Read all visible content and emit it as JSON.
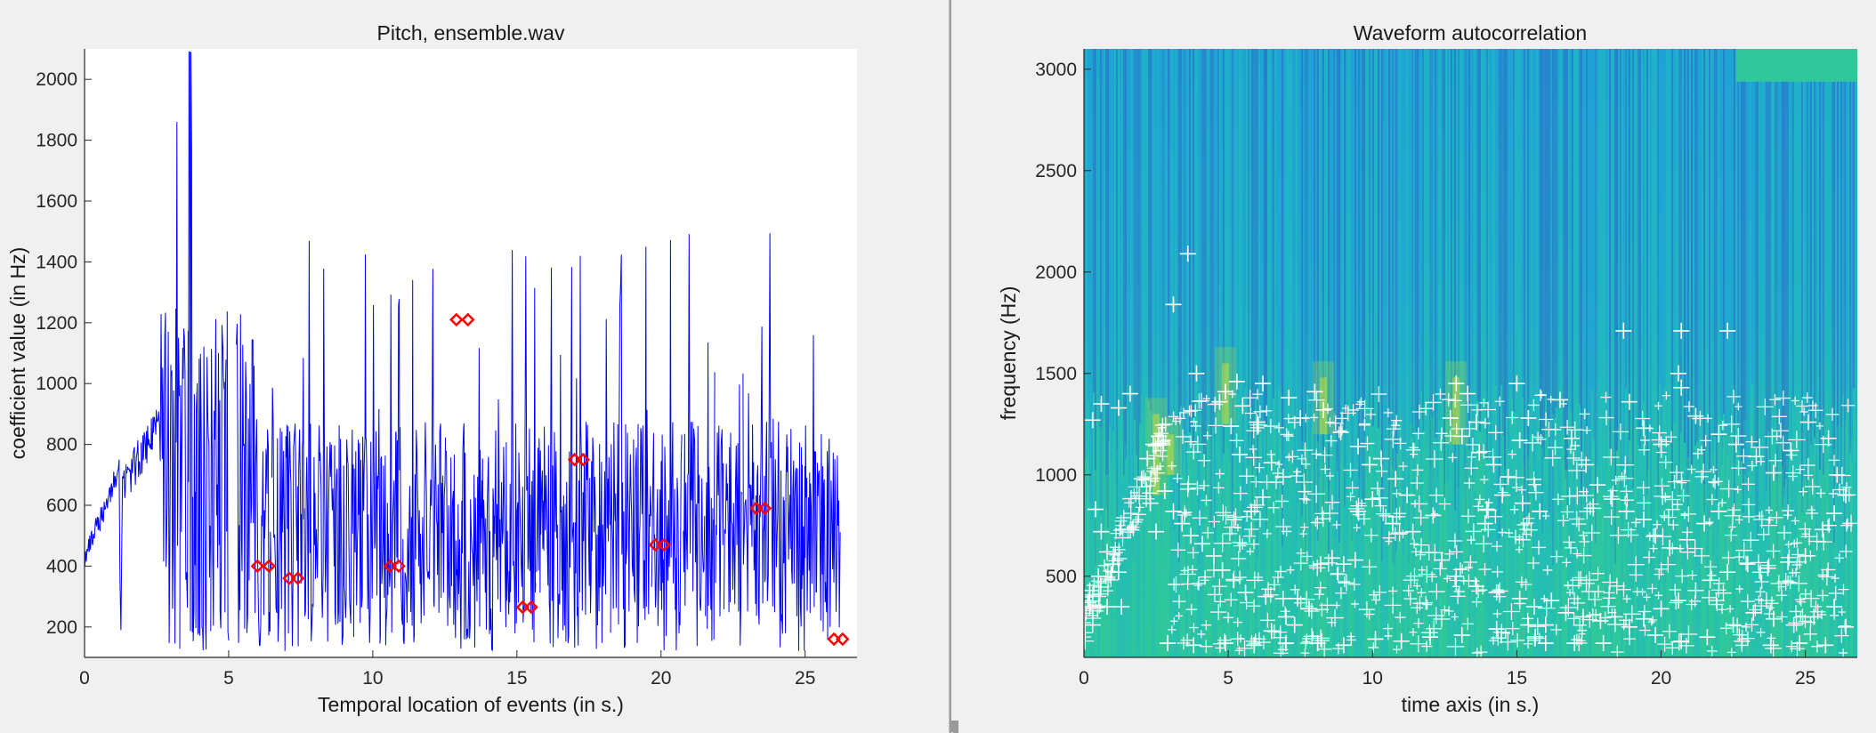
{
  "chart_data": [
    {
      "type": "line",
      "title": "Pitch, ensemble.wav",
      "xlabel": "Temporal location of events (in s.)",
      "ylabel": "coefficient value (in Hz)",
      "xlim": [
        0,
        26.8
      ],
      "ylim": [
        100,
        2100
      ],
      "xticks": [
        0,
        5,
        10,
        15,
        20,
        25
      ],
      "yticks": [
        200,
        400,
        600,
        800,
        1000,
        1200,
        1400,
        1600,
        1800,
        2000
      ],
      "line_color": "#0000ff",
      "marker_color": "#ff0000",
      "series": [
        {
          "marker": "diamond",
          "points": [
            [
              6.0,
              400
            ],
            [
              6.4,
              400
            ],
            [
              7.1,
              360
            ],
            [
              7.4,
              360
            ],
            [
              10.6,
              400
            ],
            [
              10.9,
              400
            ],
            [
              12.9,
              1210
            ],
            [
              13.3,
              1210
            ],
            [
              15.2,
              265
            ],
            [
              15.5,
              265
            ],
            [
              17.0,
              750
            ],
            [
              17.3,
              750
            ],
            [
              19.8,
              470
            ],
            [
              20.1,
              470
            ],
            [
              23.3,
              590
            ],
            [
              23.6,
              590
            ],
            [
              26.0,
              160
            ],
            [
              26.3,
              160
            ]
          ]
        }
      ]
    },
    {
      "type": "heatmap",
      "title": "Waveform autocorrelation",
      "xlabel": "time axis (in s.)",
      "ylabel": "frequency (Hz)",
      "xlim": [
        0,
        26.8
      ],
      "ylim": [
        100,
        3100
      ],
      "xticks": [
        0,
        5,
        10,
        15,
        20,
        25
      ],
      "yticks": [
        500,
        1000,
        1500,
        2000,
        2500,
        3000
      ],
      "colormap": [
        "#2a6ec8",
        "#1f9fd8",
        "#20b8c0",
        "#30c89a",
        "#8ad05a",
        "#e8e02a"
      ],
      "marker_color": "#ffffff",
      "series": [
        {
          "marker": "plus",
          "points": [
            [
              0.3,
              1270
            ],
            [
              0.6,
              1350
            ],
            [
              1.2,
              1330
            ],
            [
              1.6,
              1400
            ],
            [
              0.4,
              830
            ],
            [
              0.6,
              720
            ],
            [
              0.8,
              620
            ],
            [
              1.0,
              560
            ],
            [
              1.2,
              520
            ],
            [
              0.2,
              430
            ],
            [
              0.5,
              500
            ],
            [
              0.3,
              260
            ],
            [
              0.8,
              350
            ],
            [
              1.3,
              350
            ],
            [
              2.2,
              1080
            ],
            [
              2.4,
              1150
            ],
            [
              2.6,
              1190
            ],
            [
              2.0,
              980
            ],
            [
              2.3,
              860
            ],
            [
              2.8,
              920
            ],
            [
              2.5,
              720
            ],
            [
              3.1,
              820
            ],
            [
              3.4,
              760
            ],
            [
              3.7,
              700
            ],
            [
              4.1,
              660
            ],
            [
              3.6,
              2090
            ],
            [
              3.1,
              1840
            ],
            [
              3.9,
              1500
            ],
            [
              4.7,
              1360
            ],
            [
              4.9,
              1410
            ],
            [
              5.3,
              1460
            ],
            [
              5.5,
              1340
            ],
            [
              5.1,
              1240
            ],
            [
              6.0,
              1260
            ],
            [
              5.4,
              1100
            ],
            [
              6.5,
              1060
            ],
            [
              6.9,
              990
            ],
            [
              6.2,
              890
            ],
            [
              5.8,
              820
            ],
            [
              5.2,
              780
            ],
            [
              4.5,
              600
            ],
            [
              4.8,
              530
            ],
            [
              5.6,
              420
            ],
            [
              6.3,
              400
            ],
            [
              6.9,
              390
            ],
            [
              7.4,
              390
            ],
            [
              7.8,
              340
            ],
            [
              7.0,
              300
            ],
            [
              6.5,
              230
            ],
            [
              7.3,
              260
            ],
            [
              8.2,
              560
            ],
            [
              8.6,
              590
            ],
            [
              9.0,
              560
            ],
            [
              9.4,
              580
            ],
            [
              8.0,
              1410
            ],
            [
              8.3,
              1320
            ],
            [
              7.5,
              1280
            ],
            [
              7.1,
              1380
            ],
            [
              6.2,
              1450
            ],
            [
              8.9,
              1210
            ],
            [
              9.5,
              1140
            ],
            [
              9.9,
              1050
            ],
            [
              10.3,
              1080
            ],
            [
              10.8,
              980
            ],
            [
              11.2,
              900
            ],
            [
              10.0,
              880
            ],
            [
              9.5,
              820
            ],
            [
              10.7,
              760
            ],
            [
              11.4,
              720
            ],
            [
              12.1,
              800
            ],
            [
              12.7,
              1280
            ],
            [
              12.9,
              1450
            ],
            [
              13.3,
              1400
            ],
            [
              13.6,
              1260
            ],
            [
              13.1,
              1190
            ],
            [
              13.7,
              1110
            ],
            [
              14.2,
              1050
            ],
            [
              14.7,
              990
            ],
            [
              15.1,
              1170
            ],
            [
              15.4,
              1280
            ],
            [
              15.0,
              1450
            ],
            [
              14.5,
              900
            ],
            [
              15.2,
              860
            ],
            [
              15.8,
              820
            ],
            [
              13.9,
              760
            ],
            [
              12.4,
              580
            ],
            [
              12.9,
              500
            ],
            [
              13.6,
              450
            ],
            [
              14.3,
              420
            ],
            [
              15.1,
              390
            ],
            [
              15.6,
              350
            ],
            [
              16.2,
              380
            ],
            [
              16.7,
              320
            ],
            [
              17.3,
              300
            ],
            [
              17.9,
              280
            ],
            [
              18.4,
              300
            ],
            [
              16.0,
              260
            ],
            [
              15.4,
              260
            ],
            [
              14.3,
              240
            ],
            [
              13.1,
              210
            ],
            [
              12.0,
              200
            ],
            [
              11.0,
              180
            ],
            [
              10.1,
              190
            ],
            [
              9.0,
              160
            ],
            [
              8.1,
              170
            ],
            [
              7.0,
              170
            ],
            [
              5.9,
              160
            ],
            [
              4.9,
              170
            ],
            [
              3.8,
              160
            ],
            [
              2.9,
              170
            ],
            [
              16.5,
              1370
            ],
            [
              16.9,
              1180
            ],
            [
              17.4,
              1050
            ],
            [
              17.8,
              950
            ],
            [
              18.3,
              880
            ],
            [
              18.8,
              820
            ],
            [
              19.4,
              780
            ],
            [
              19.8,
              700
            ],
            [
              20.3,
              640
            ],
            [
              20.9,
              680
            ],
            [
              21.5,
              760
            ],
            [
              22.0,
              820
            ],
            [
              18.9,
              1360
            ],
            [
              19.4,
              1230
            ],
            [
              20.0,
              1150
            ],
            [
              20.6,
              1500
            ],
            [
              20.7,
              1430
            ],
            [
              21.2,
              1290
            ],
            [
              22.0,
              1200
            ],
            [
              22.6,
              1150
            ],
            [
              23.3,
              1090
            ],
            [
              23.9,
              1010
            ],
            [
              24.5,
              1120
            ],
            [
              25.1,
              1260
            ],
            [
              25.8,
              1180
            ],
            [
              26.1,
              1000
            ],
            [
              26.4,
              900
            ],
            [
              26.0,
              810
            ],
            [
              25.6,
              730
            ],
            [
              25.0,
              600
            ],
            [
              24.4,
              570
            ],
            [
              23.7,
              540
            ],
            [
              23.0,
              560
            ],
            [
              22.3,
              520
            ],
            [
              21.7,
              480
            ],
            [
              21.2,
              430
            ],
            [
              20.6,
              380
            ],
            [
              20.0,
              340
            ],
            [
              19.4,
              290
            ],
            [
              18.9,
              250
            ],
            [
              19.8,
              210
            ],
            [
              20.7,
              180
            ],
            [
              21.6,
              200
            ],
            [
              22.5,
              260
            ],
            [
              23.2,
              320
            ],
            [
              23.9,
              290
            ],
            [
              24.6,
              260
            ],
            [
              25.3,
              300
            ],
            [
              26.0,
              350
            ],
            [
              26.4,
              250
            ],
            [
              25.7,
              160
            ],
            [
              24.8,
              170
            ],
            [
              23.8,
              160
            ],
            [
              22.8,
              180
            ],
            [
              18.7,
              1710
            ],
            [
              20.7,
              1710
            ],
            [
              22.3,
              1710
            ],
            [
              16.0,
              170
            ],
            [
              17.0,
              170
            ],
            [
              18.0,
              170
            ]
          ]
        }
      ]
    }
  ]
}
